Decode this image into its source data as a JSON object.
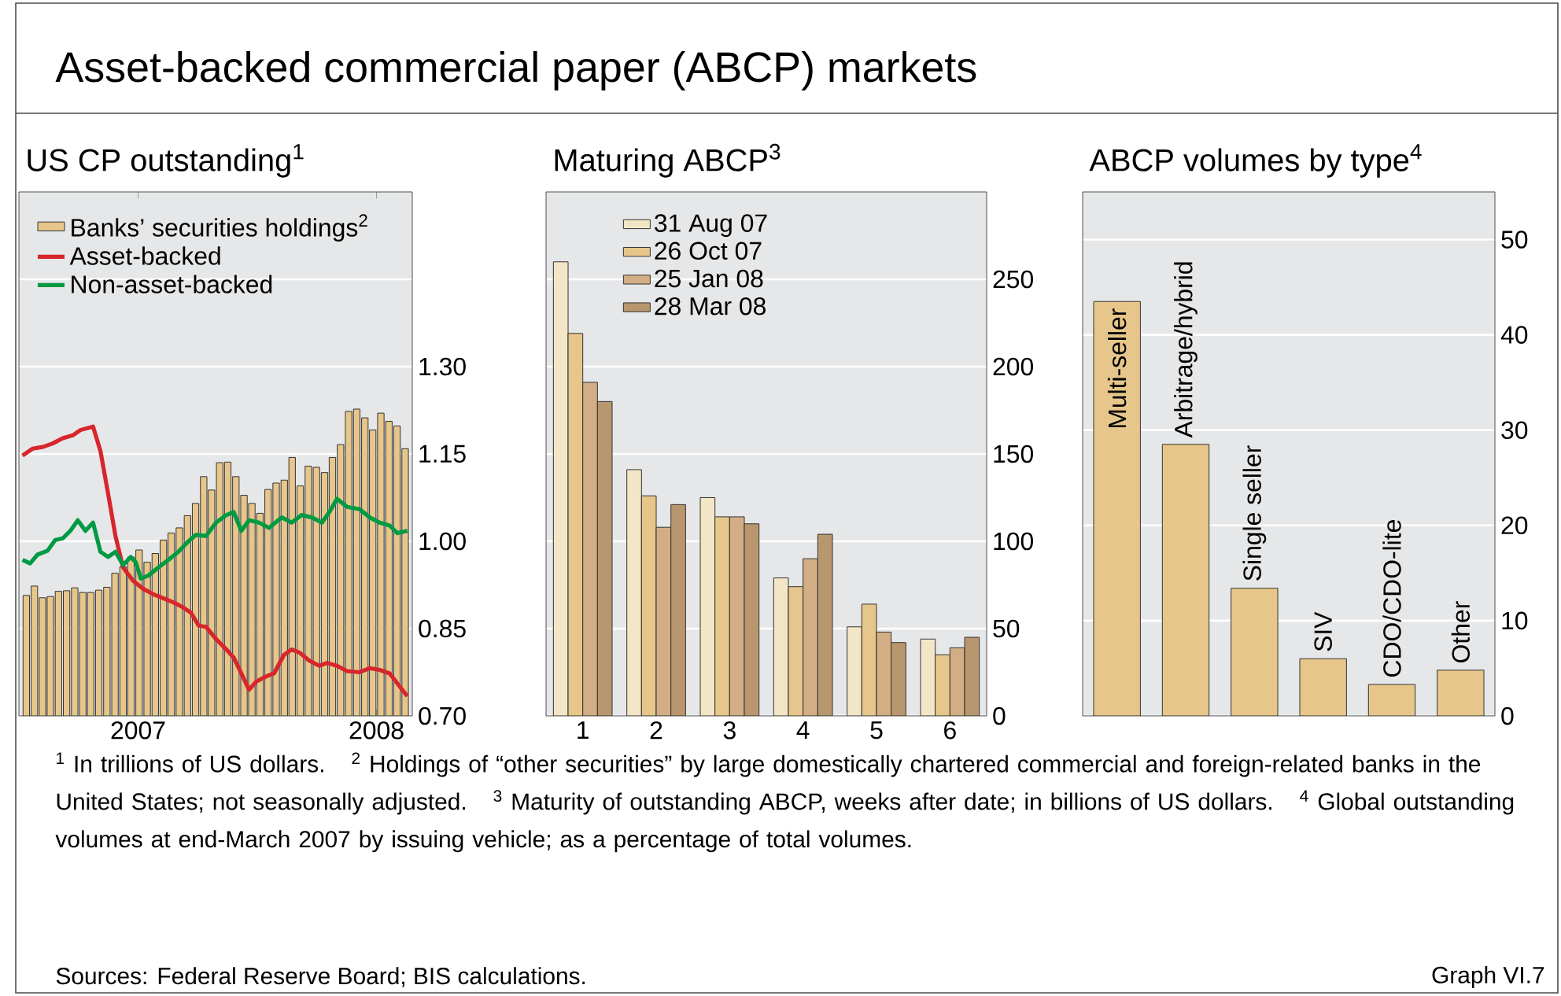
{
  "chart_data": [
    {
      "type": "other",
      "title": "Asset-backed commercial paper (ABCP) markets",
      "annotations": [
        "$^{1}$ In trillions of US dollars.",
        "$^{2}$ Holdings of “other securities” by large domestically chartered commercial and foreign-related banks in the United States; not seasonally adjusted.",
        "$^{3}$ Maturity of outstanding ABCP, weeks after date; in billions of US dollars.",
        "$^{4}$ Global outstanding volumes at end-March 2007 by issuing vehicle; as a percentage of total volumes.",
        "Sources: Federal Reserve Board; BIS calculations.",
        "Graph VI.7"
      ]
    },
    {
      "type": "bar",
      "title": "US CP outstanding$^{1}$",
      "x": [
        2006.531,
        2006.565,
        2006.599,
        2006.632,
        2006.666,
        2006.7,
        2006.734,
        2006.768,
        2006.801,
        2006.835,
        2006.869,
        2006.903,
        2006.937,
        2006.97,
        2007.004,
        2007.038,
        2007.072,
        2007.106,
        2007.139,
        2007.173,
        2007.207,
        2007.241,
        2007.275,
        2007.308,
        2007.342,
        2007.376,
        2007.41,
        2007.444,
        2007.477,
        2007.511,
        2007.545,
        2007.579,
        2007.613,
        2007.646,
        2007.68,
        2007.714,
        2007.748,
        2007.782,
        2007.815,
        2007.849,
        2007.883,
        2007.917,
        2007.951,
        2007.984,
        2008.018,
        2008.052,
        2008.086,
        2008.12
      ],
      "xlim": [
        2006.5,
        2008.15
      ],
      "xticks": [
        2007,
        2008
      ],
      "ylim": [
        0.7,
        1.6
      ],
      "yticks": [
        {
          "value": 0.7,
          "label": "0.70"
        },
        {
          "value": 0.85,
          "label": "0.85"
        },
        {
          "value": 1.0,
          "label": "1.00"
        },
        {
          "value": 1.15,
          "label": "1.15"
        },
        {
          "value": 1.3,
          "label": "1.30"
        },
        {
          "value": 1.45,
          "label": null
        }
      ],
      "grid": "y",
      "legend": "top left",
      "series": [
        {
          "name": "Banks’ securities holdings$^{2}$",
          "color": "#e6c68a",
          "values": [
            0.907,
            0.923,
            0.903,
            0.905,
            0.914,
            0.915,
            0.92,
            0.912,
            0.912,
            0.916,
            0.921,
            0.945,
            0.956,
            0.973,
            0.985,
            0.964,
            0.979,
            1.002,
            1.014,
            1.023,
            1.044,
            1.065,
            1.111,
            1.088,
            1.135,
            1.136,
            1.111,
            1.079,
            1.065,
            1.048,
            1.089,
            1.1,
            1.105,
            1.144,
            1.095,
            1.129,
            1.127,
            1.118,
            1.144,
            1.166,
            1.223,
            1.227,
            1.212,
            1.191,
            1.22,
            1.206,
            1.198,
            1.159
          ]
        },
        {
          "name": "Asset-backed",
          "type": "line",
          "color": "#d7262c",
          "x": [
            2006.515,
            2006.557,
            2006.6,
            2006.642,
            2006.684,
            2006.726,
            2006.758,
            2006.811,
            2006.842,
            2006.874,
            2006.905,
            2006.937,
            2006.979,
            2007.022,
            2007.064,
            2007.106,
            2007.148,
            2007.19,
            2007.222,
            2007.254,
            2007.285,
            2007.327,
            2007.37,
            2007.401,
            2007.433,
            2007.465,
            2007.496,
            2007.538,
            2007.57,
            2007.612,
            2007.644,
            2007.676,
            2007.718,
            2007.76,
            2007.792,
            2007.834,
            2007.876,
            2007.929,
            2007.971,
            2008.013,
            2008.055,
            2008.098,
            2008.129
          ],
          "values": [
            1.147,
            1.159,
            1.162,
            1.168,
            1.177,
            1.182,
            1.191,
            1.197,
            1.155,
            1.082,
            1.009,
            0.955,
            0.932,
            0.918,
            0.909,
            0.902,
            0.895,
            0.886,
            0.877,
            0.855,
            0.853,
            0.832,
            0.814,
            0.8,
            0.773,
            0.745,
            0.759,
            0.768,
            0.773,
            0.805,
            0.814,
            0.809,
            0.795,
            0.786,
            0.791,
            0.786,
            0.777,
            0.775,
            0.782,
            0.779,
            0.773,
            0.75,
            0.734
          ]
        },
        {
          "name": "Non-asset-backed",
          "type": "line",
          "color": "#009a44",
          "x": [
            2006.515,
            2006.547,
            2006.578,
            2006.621,
            2006.652,
            2006.684,
            2006.716,
            2006.747,
            2006.779,
            2006.811,
            2006.842,
            2006.874,
            2006.905,
            2006.937,
            2006.969,
            2006.99,
            2007.011,
            2007.043,
            2007.085,
            2007.127,
            2007.169,
            2007.211,
            2007.243,
            2007.285,
            2007.327,
            2007.37,
            2007.401,
            2007.433,
            2007.465,
            2007.507,
            2007.549,
            2007.602,
            2007.644,
            2007.686,
            2007.728,
            2007.771,
            2007.802,
            2007.834,
            2007.876,
            2007.929,
            2007.971,
            2008.013,
            2008.055,
            2008.087,
            2008.129
          ],
          "values": [
            0.968,
            0.962,
            0.977,
            0.984,
            1.002,
            1.005,
            1.018,
            1.036,
            1.018,
            1.032,
            0.982,
            0.973,
            0.982,
            0.959,
            0.973,
            0.964,
            0.936,
            0.941,
            0.955,
            0.968,
            0.982,
            1.0,
            1.011,
            1.009,
            1.032,
            1.045,
            1.05,
            1.018,
            1.036,
            1.032,
            1.023,
            1.041,
            1.032,
            1.045,
            1.041,
            1.032,
            1.05,
            1.073,
            1.059,
            1.055,
            1.041,
            1.032,
            1.027,
            1.014,
            1.018
          ]
        }
      ]
    },
    {
      "type": "bar",
      "title": "Maturing ABCP$^{3}$",
      "categories": [
        "1",
        "2",
        "3",
        "4",
        "5",
        "6"
      ],
      "ylim": [
        0,
        300
      ],
      "yticks": [
        0,
        50,
        100,
        150,
        200,
        250
      ],
      "grid": "y",
      "legend": "top left",
      "series": [
        {
          "name": "31 Aug 07",
          "color": "#f2e6c6",
          "values": [
            260,
            141,
            125,
            79,
            51,
            44
          ]
        },
        {
          "name": "26 Oct 07",
          "color": "#e6c68a",
          "values": [
            219,
            126,
            114,
            74,
            64,
            35
          ]
        },
        {
          "name": "25 Jan 08",
          "color": "#d3ae85",
          "values": [
            191,
            108,
            114,
            90,
            48,
            39
          ]
        },
        {
          "name": "28 Mar 08",
          "color": "#b9976e",
          "values": [
            180,
            121,
            110,
            104,
            42,
            45
          ]
        }
      ]
    },
    {
      "type": "bar",
      "title": "ABCP volumes by type$^{4}$",
      "categories": [
        "Multi-seller",
        "Arbitrage/hybrid",
        "Single seller",
        "SIV",
        "CDO/CDO-lite",
        "Other"
      ],
      "ylim": [
        0,
        55
      ],
      "yticks": [
        0,
        10,
        20,
        30,
        40,
        50
      ],
      "grid": "y",
      "series": [
        {
          "color": "#e6c68a",
          "values": [
            43.5,
            28.5,
            13.4,
            6.0,
            3.3,
            4.8
          ]
        }
      ]
    }
  ]
}
